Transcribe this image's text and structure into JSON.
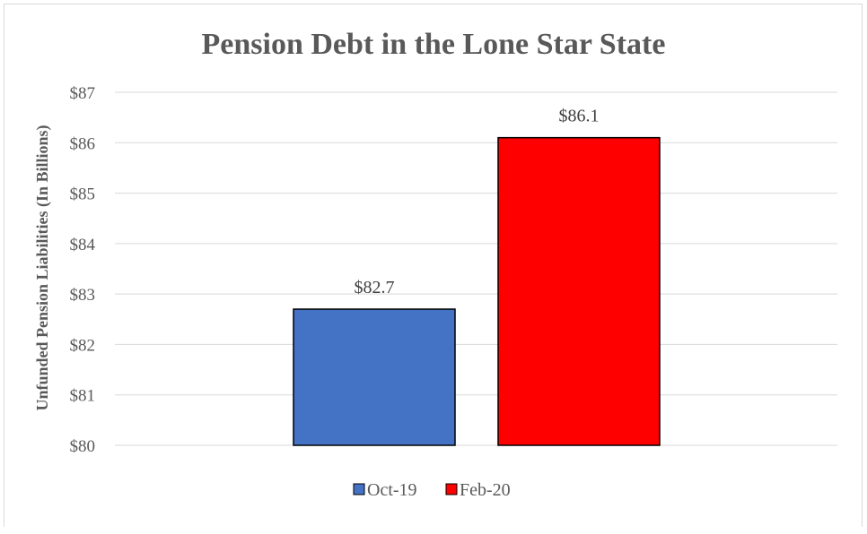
{
  "chart_data": {
    "type": "bar",
    "title": "Pension Debt in the Lone Star State",
    "xlabel": "",
    "ylabel": "Unfunded Pension Liabilities (In Billions)",
    "ylim": [
      80,
      87
    ],
    "yticks": [
      80,
      81,
      82,
      83,
      84,
      85,
      86,
      87
    ],
    "ytick_labels": [
      "$80",
      "$81",
      "$82",
      "$83",
      "$84",
      "$85",
      "$86",
      "$87"
    ],
    "grid": true,
    "legend_position": "bottom",
    "series": [
      {
        "name": "Oct-19",
        "value": 82.7,
        "label": "$82.7",
        "color": "#4472c4"
      },
      {
        "name": "Feb-20",
        "value": 86.1,
        "label": "$86.1",
        "color": "#ff0000"
      }
    ]
  }
}
